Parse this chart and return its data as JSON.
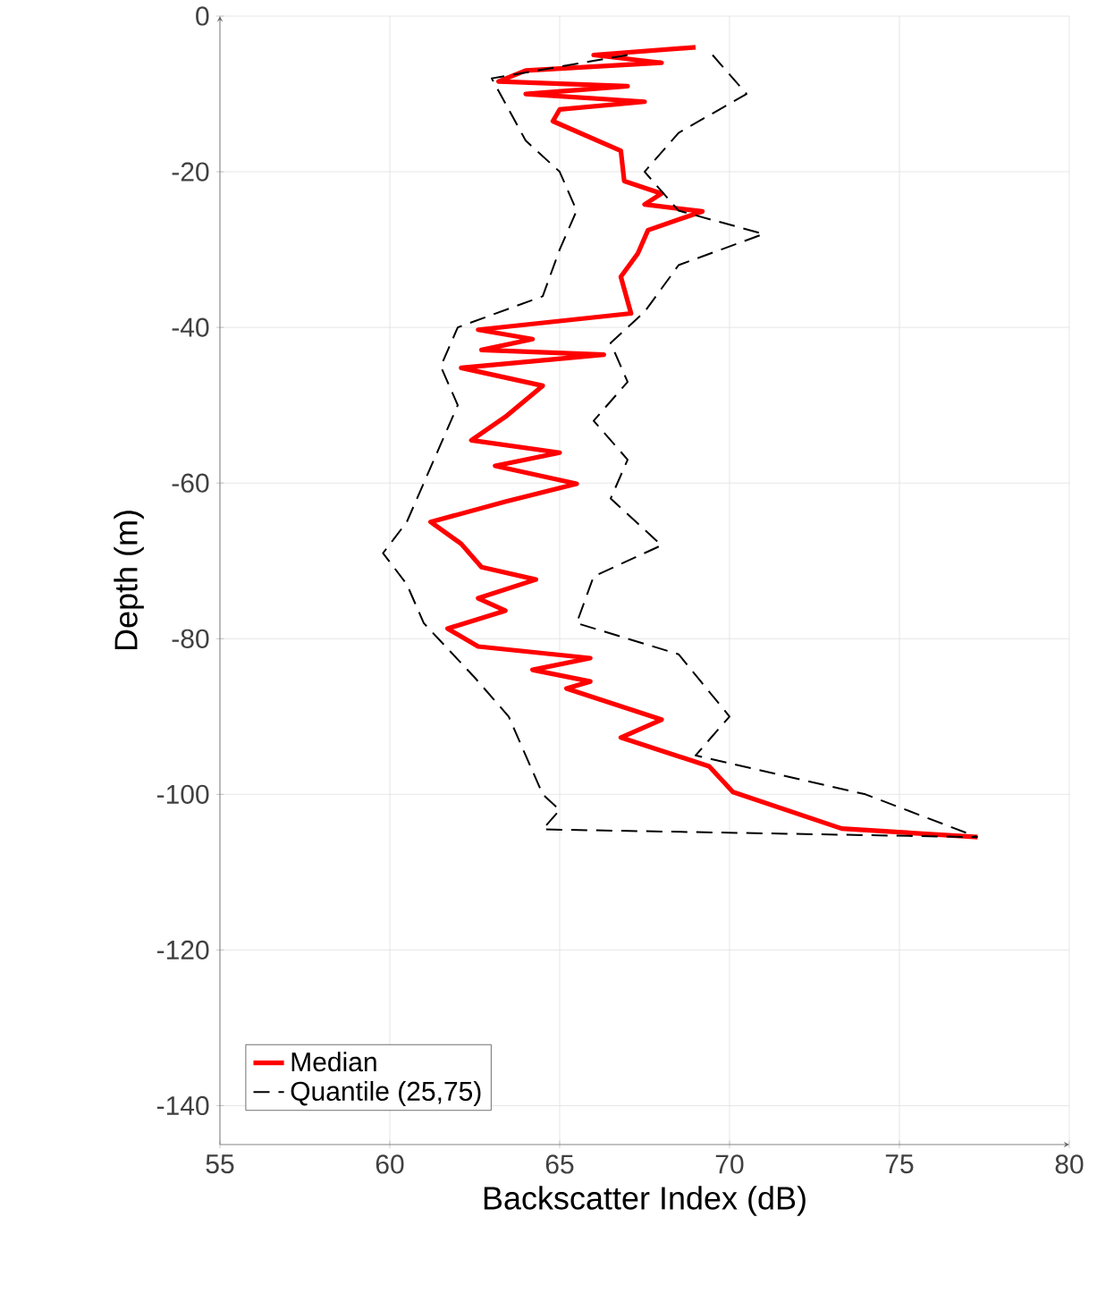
{
  "chart_data": {
    "type": "line",
    "xlabel": "Backscatter Index (dB)",
    "ylabel": "Depth (m)",
    "xlim": [
      55,
      80
    ],
    "xticks": [
      55,
      60,
      65,
      70,
      75,
      80
    ],
    "ylim": [
      -145,
      0
    ],
    "yticks": [
      -140,
      -120,
      -100,
      -80,
      -60,
      -40,
      -20,
      0
    ],
    "grid": true,
    "legend": "bottom left",
    "series": [
      {
        "name": "Median",
        "color": "#ff0000",
        "line_style": "solid",
        "x": [
          69,
          66,
          68,
          64,
          63.2,
          67,
          64,
          67.5,
          65,
          64.8,
          66.8,
          66.9,
          68,
          67.5,
          69.2,
          67.6,
          67.3,
          66.8,
          67.1,
          62.6,
          64.2,
          62.7,
          66.3,
          62.1,
          64.5,
          63.4,
          62.4,
          65,
          63.1,
          65.5,
          63.4,
          61.2,
          62.1,
          62.7,
          64.3,
          62.6,
          63.4,
          61.7,
          62.6,
          65.9,
          64.2,
          65.9,
          65.2,
          68,
          66.8,
          69.4,
          70.1,
          73.3,
          77.3
        ],
        "values": [
          -4,
          -5,
          -6,
          -7,
          -8.4,
          -9,
          -10,
          -11,
          -12,
          -13.5,
          -17.3,
          -21.2,
          -22.8,
          -24.2,
          -25.1,
          -27.5,
          -30.5,
          -33.5,
          -38.2,
          -40.3,
          -41.5,
          -42.9,
          -43.5,
          -45.2,
          -47.5,
          -51.5,
          -54.5,
          -56.1,
          -57.8,
          -60.1,
          -62.4,
          -65,
          -67.8,
          -70.8,
          -72.4,
          -74.8,
          -76.4,
          -78.7,
          -81,
          -82.5,
          -84,
          -85.5,
          -86.4,
          -90.4,
          -92.7,
          -96.4,
          -99.7,
          -104.4,
          -105.5
        ]
      },
      {
        "name": "Quantile (25,75)",
        "color": "#000000",
        "line_style": "dashed",
        "x": [
          69.5,
          70.5,
          68.5,
          67.5,
          68.5,
          71,
          68.5,
          67.5,
          66.5,
          67,
          66,
          67,
          66.5,
          68,
          66,
          65.5,
          68.5,
          70,
          69,
          74,
          77.3
        ],
        "values": [
          -5,
          -10,
          -15,
          -20,
          -25,
          -28,
          -32,
          -38,
          -42,
          -47,
          -52,
          -57,
          -62,
          -68,
          -72,
          -78,
          -82,
          -90,
          -95,
          -100,
          -105.5
        ]
      },
      {
        "color": "#000000",
        "line_style": "dashed",
        "x": [
          67,
          63,
          63.5,
          64,
          65,
          65.5,
          65,
          64.5,
          62,
          61.5,
          62,
          61.5,
          61,
          60.5,
          59.8,
          60.5,
          61,
          62.5,
          63.5,
          64,
          64.5,
          65,
          64.5,
          77.3
        ],
        "values": [
          -5,
          -8,
          -12,
          -16,
          -20,
          -25,
          -30,
          -36,
          -40,
          -45,
          -50,
          -55,
          -60,
          -65,
          -69,
          -73,
          -78,
          -85,
          -90,
          -95,
          -100,
          -102,
          -104.5,
          -105.5
        ]
      }
    ]
  }
}
